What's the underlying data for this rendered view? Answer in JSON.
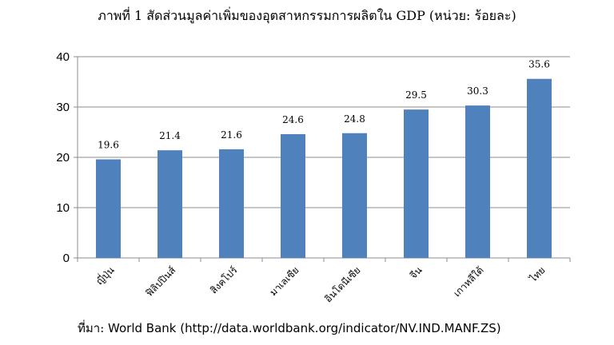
{
  "chart_data": {
    "type": "bar",
    "title": "ภาพที่ 1 สัดส่วนมูลค่าเพิ่มของอุตสาหกรรมการผลิตใน GDP (หน่วย: ร้อยละ)",
    "categories": [
      "ญี่ปุ่น",
      "ฟิลิปปินส์",
      "สิงคโปร์",
      "มาเลเซีย",
      "อินโดนีเซีย",
      "จีน",
      "เกาหลีใต้",
      "ไทย"
    ],
    "values": [
      19.6,
      21.4,
      21.6,
      24.6,
      24.8,
      29.5,
      30.3,
      35.6
    ],
    "data_labels": [
      "19.6",
      "21.4",
      "21.6",
      "24.6",
      "24.8",
      "29.5",
      "30.3",
      "35.6"
    ],
    "yticks": [
      "0",
      "10",
      "20",
      "30",
      "40"
    ],
    "ylim": [
      0,
      40
    ],
    "xlabel": "",
    "ylabel": "",
    "grid": true,
    "bar_color": "#4f81bd",
    "legend": "none"
  },
  "source": {
    "lead": "ที่มา:",
    "text": " World Bank (http://data.worldbank.org/indicator/NV.IND.MANF.ZS)"
  }
}
